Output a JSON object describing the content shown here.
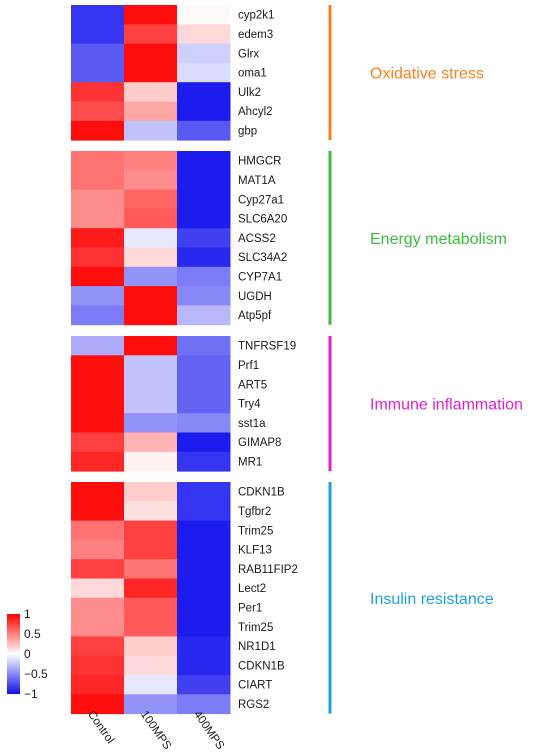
{
  "chart_data": {
    "type": "heatmap",
    "columns": [
      "Control",
      "100MPS",
      "400MPS"
    ],
    "scale": {
      "min": -1,
      "max": 1,
      "low_color": "#1010ee",
      "mid_color": "#ffffff",
      "high_color": "#ff0000"
    },
    "legend": {
      "ticks": [
        "1",
        "0.5",
        "0",
        "−0.5",
        "−1"
      ],
      "values": [
        1,
        0.5,
        0,
        -0.5,
        -1
      ],
      "placement": "bottom-left"
    },
    "groups": [
      {
        "name": "Oxidative stress",
        "color": "#f58220",
        "rows": [
          {
            "gene": "cyp2k1",
            "values": [
              -0.85,
              0.95,
              0.02
            ]
          },
          {
            "gene": "edem3",
            "values": [
              -0.85,
              0.75,
              0.15
            ]
          },
          {
            "gene": "Glrx",
            "values": [
              -0.7,
              0.95,
              -0.2
            ]
          },
          {
            "gene": "oma1",
            "values": [
              -0.7,
              0.95,
              -0.15
            ]
          },
          {
            "gene": "Ulk2",
            "values": [
              0.8,
              0.2,
              -0.95
            ]
          },
          {
            "gene": "Ahcyl2",
            "values": [
              0.7,
              0.35,
              -0.95
            ]
          },
          {
            "gene": "gbp",
            "values": [
              0.95,
              -0.25,
              -0.7
            ]
          }
        ]
      },
      {
        "name": "Energy metabolism",
        "color": "#3dbb3d",
        "rows": [
          {
            "gene": "HMGCR",
            "values": [
              0.55,
              0.5,
              -0.95
            ]
          },
          {
            "gene": "MAT1A",
            "values": [
              0.55,
              0.45,
              -0.95
            ]
          },
          {
            "gene": "Cyp27a1",
            "values": [
              0.45,
              0.6,
              -0.95
            ]
          },
          {
            "gene": "SLC6A20",
            "values": [
              0.45,
              0.65,
              -0.95
            ]
          },
          {
            "gene": "ACSS2",
            "values": [
              0.9,
              -0.1,
              -0.8
            ]
          },
          {
            "gene": "SLC34A2",
            "values": [
              0.8,
              0.15,
              -0.9
            ]
          },
          {
            "gene": "CYP7A1",
            "values": [
              0.95,
              -0.45,
              -0.55
            ]
          },
          {
            "gene": "UGDH",
            "values": [
              -0.45,
              0.95,
              -0.5
            ]
          },
          {
            "gene": "Atp5pf",
            "values": [
              -0.55,
              0.95,
              -0.3
            ]
          }
        ]
      },
      {
        "name": "Immune inflammation",
        "color": "#e020d0",
        "rows": [
          {
            "gene": "TNFRSF19",
            "values": [
              -0.35,
              0.95,
              -0.6
            ]
          },
          {
            "gene": "Prf1",
            "values": [
              0.95,
              -0.25,
              -0.65
            ]
          },
          {
            "gene": "ART5",
            "values": [
              0.95,
              -0.25,
              -0.65
            ]
          },
          {
            "gene": "Try4",
            "values": [
              0.95,
              -0.25,
              -0.65
            ]
          },
          {
            "gene": "sst1a",
            "values": [
              0.95,
              -0.45,
              -0.5
            ]
          },
          {
            "gene": "GIMAP8",
            "values": [
              0.75,
              0.3,
              -0.95
            ]
          },
          {
            "gene": "MR1",
            "values": [
              0.85,
              0.05,
              -0.85
            ]
          }
        ]
      },
      {
        "name": "Insulin resistance",
        "color": "#1aa3dd",
        "rows": [
          {
            "gene": "CDKN1B",
            "values": [
              0.95,
              0.2,
              -0.85
            ]
          },
          {
            "gene": "Tgfbr2",
            "values": [
              0.95,
              0.12,
              -0.85
            ]
          },
          {
            "gene": "Trim25",
            "values": [
              0.55,
              0.75,
              -0.95
            ]
          },
          {
            "gene": "KLF13",
            "values": [
              0.5,
              0.75,
              -0.95
            ]
          },
          {
            "gene": "RAB11FIP2",
            "values": [
              0.75,
              0.55,
              -0.95
            ]
          },
          {
            "gene": "Lect2",
            "values": [
              0.15,
              0.85,
              -0.95
            ]
          },
          {
            "gene": "Per1",
            "values": [
              0.45,
              0.65,
              -0.95
            ]
          },
          {
            "gene": "Trim25",
            "values": [
              0.45,
              0.65,
              -0.95
            ]
          },
          {
            "gene": "NR1D1",
            "values": [
              0.75,
              0.2,
              -0.9
            ]
          },
          {
            "gene": "CDKN1B",
            "values": [
              0.8,
              0.15,
              -0.9
            ]
          },
          {
            "gene": "CIART",
            "values": [
              0.85,
              -0.1,
              -0.8
            ]
          },
          {
            "gene": "RGS2",
            "values": [
              0.95,
              -0.45,
              -0.55
            ]
          }
        ]
      }
    ]
  }
}
